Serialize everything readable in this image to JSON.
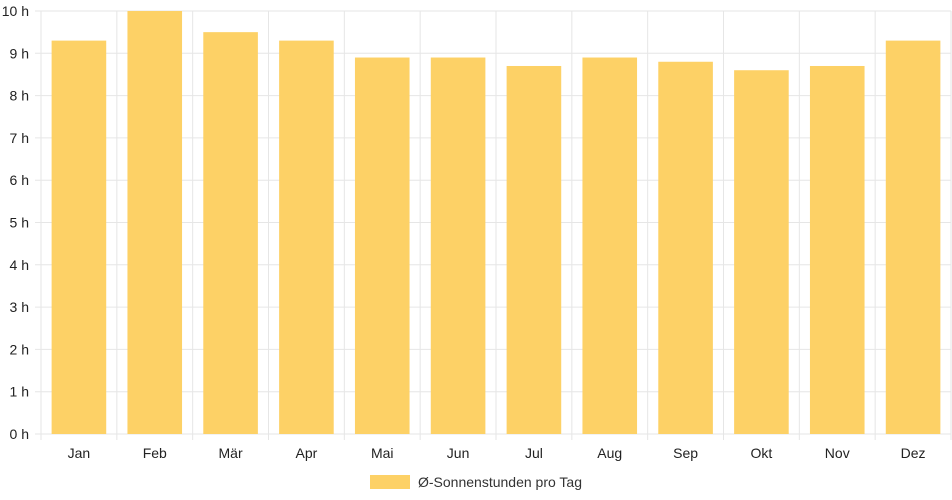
{
  "chart_data": {
    "type": "bar",
    "categories": [
      "Jan",
      "Feb",
      "Mär",
      "Apr",
      "Mai",
      "Jun",
      "Jul",
      "Aug",
      "Sep",
      "Okt",
      "Nov",
      "Dez"
    ],
    "series": [
      {
        "name": "Ø-Sonnenstunden pro Tag",
        "values": [
          9.3,
          10.0,
          9.5,
          9.3,
          8.9,
          8.9,
          8.7,
          8.9,
          8.8,
          8.6,
          8.7,
          9.3
        ]
      }
    ],
    "y_ticks": [
      "0 h",
      "1 h",
      "2 h",
      "3 h",
      "4 h",
      "5 h",
      "6 h",
      "7 h",
      "8 h",
      "9 h",
      "10 h"
    ],
    "ylim": [
      0,
      10
    ],
    "grid": true,
    "legend_position": "bottom",
    "bar_color": "#fdd166",
    "grid_color": "#e6e6e6"
  }
}
